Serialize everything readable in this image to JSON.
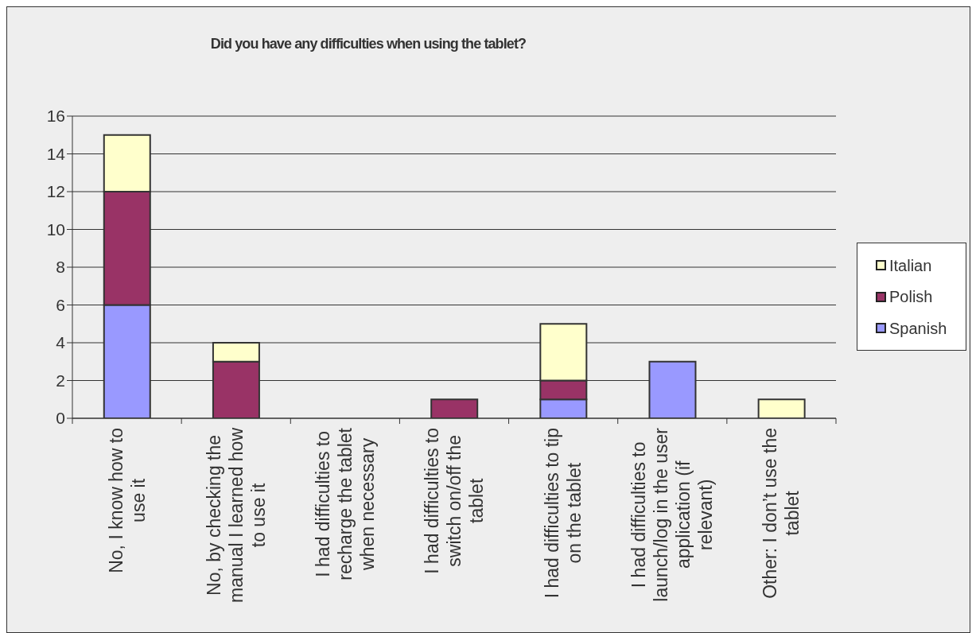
{
  "chart_data": {
    "type": "bar",
    "title": "Did you have any difficulties when using the tablet?",
    "categories": [
      "No, I know how to use it",
      "No, by checking the manual I learned how to use it",
      "I had difficulties to recharge the tablet when necessary",
      "I had difficulties to switch on/off the tablet",
      "I had difficulties to tip on the tablet",
      "I had difficulties to launch/log in the user application (if relevant)",
      "Other: I don’t use the tablet"
    ],
    "stacked": true,
    "series": [
      {
        "name": "Spanish",
        "color": "#9999ff",
        "values": [
          6,
          0,
          0,
          0,
          1,
          3,
          0
        ]
      },
      {
        "name": "Polish",
        "color": "#993366",
        "values": [
          6,
          3,
          0,
          1,
          1,
          0,
          0
        ]
      },
      {
        "name": "Italian",
        "color": "#ffffcc",
        "values": [
          3,
          1,
          0,
          0,
          3,
          0,
          1
        ]
      }
    ],
    "ylim": [
      0,
      16
    ],
    "yticks": [
      0,
      2,
      4,
      6,
      8,
      10,
      12,
      14,
      16
    ],
    "grid": "y",
    "legend": "right"
  }
}
